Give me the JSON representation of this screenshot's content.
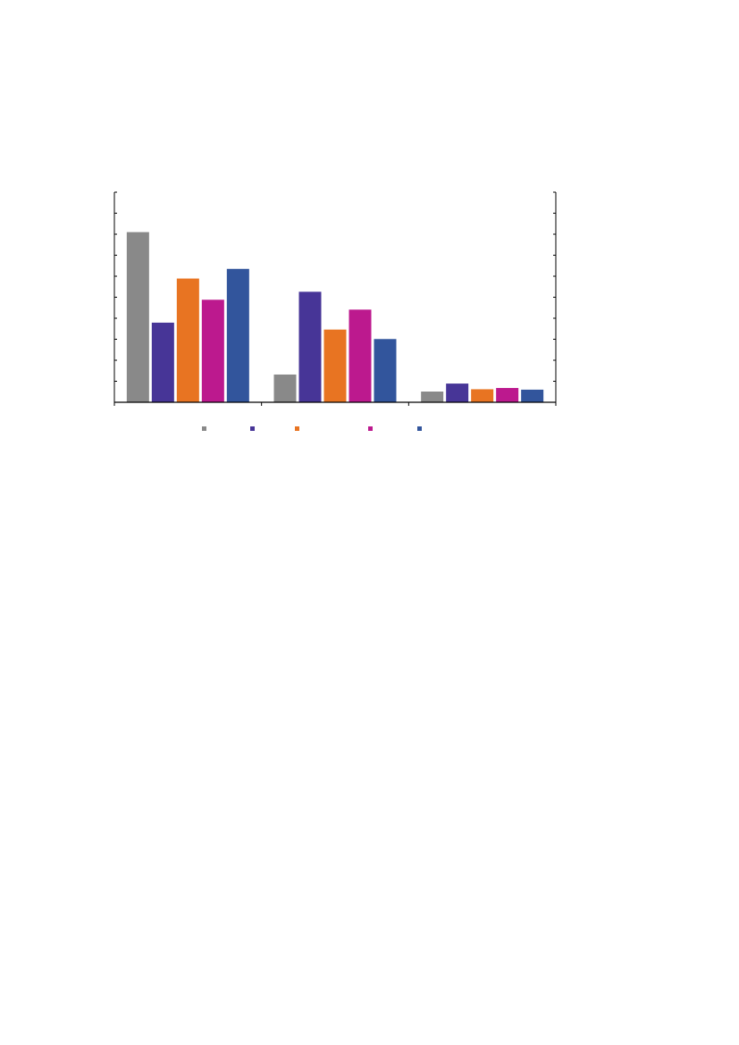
{
  "chart_data": {
    "type": "bar",
    "title": "",
    "xlabel": "",
    "ylabel": "",
    "categories": [
      "",
      "",
      ""
    ],
    "ylim": [
      0,
      10
    ],
    "y_ticks": [
      0,
      1,
      2,
      3,
      4,
      5,
      6,
      7,
      8,
      9,
      10
    ],
    "secondary_y_axis_ticks": true,
    "grid": false,
    "legend": "bottom",
    "series": [
      {
        "color": "#898989",
        "values": [
          8.1,
          1.32,
          0.51
        ]
      },
      {
        "color": "#473597",
        "values": [
          3.79,
          5.26,
          0.89
        ]
      },
      {
        "color": "#E87422",
        "values": [
          5.89,
          3.46,
          0.62
        ]
      },
      {
        "color": "#BC198E",
        "values": [
          4.88,
          4.41,
          0.68
        ]
      },
      {
        "color": "#32559C",
        "values": [
          6.35,
          3.01,
          0.6
        ]
      }
    ]
  }
}
